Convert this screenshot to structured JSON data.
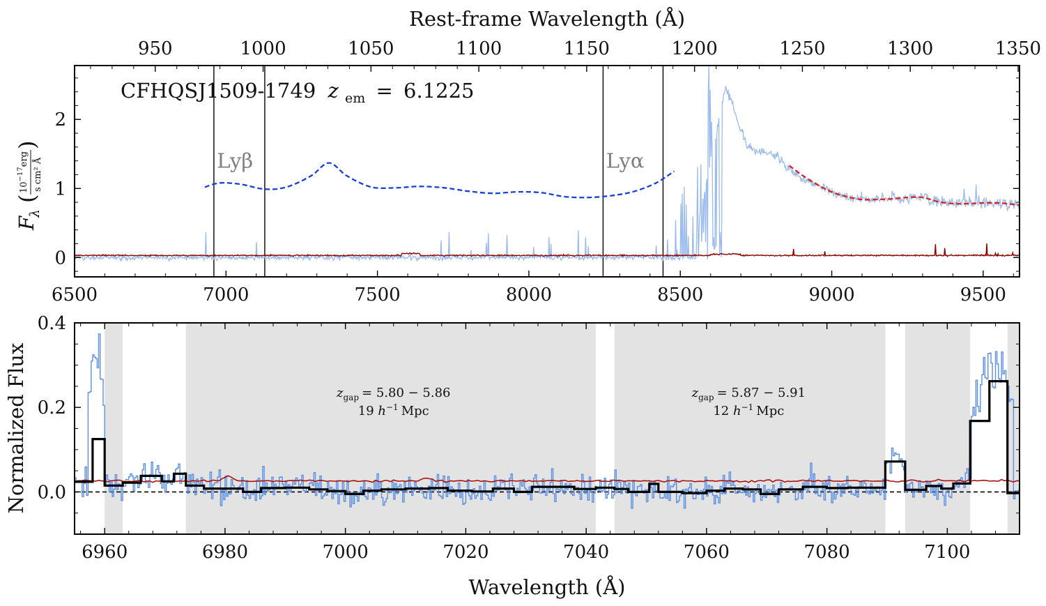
{
  "chart_data": [
    {
      "type": "line",
      "panel": "top",
      "object_label": "CFHQSJ1509-1749",
      "redshift_label": "6.1225",
      "redshift_symbol": "z",
      "redshift_subscript": "em",
      "ylabel_symbol": "F",
      "ylabel_subscript": "λ",
      "ylabel_unit_top": "10",
      "ylabel_unit_exp": "−17",
      "ylabel_unit_top_rest": "erg",
      "ylabel_unit_bottom": "s cm² Å",
      "xlabel_top": "Rest-frame Wavelength (Å)",
      "xlim": [
        6500,
        9620
      ],
      "ylim": [
        -0.28,
        2.78
      ],
      "x_ticks": [
        6500,
        7000,
        7500,
        8000,
        8500,
        9000,
        9500
      ],
      "top_ticks": [
        950,
        1000,
        1050,
        1100,
        1150,
        1200,
        1250,
        1300,
        1350
      ],
      "y_ticks": [
        0,
        1,
        2
      ],
      "vertical_lines": [
        6960,
        7128,
        8245,
        8443
      ],
      "line_labels": [
        {
          "text": "Lyβ",
          "x": 6970,
          "y": 1.3
        },
        {
          "text": "Lyα",
          "x": 8255,
          "y": 1.3
        }
      ],
      "series": [
        {
          "role": "flux",
          "color": "#9bbcec"
        },
        {
          "role": "error",
          "color": "#8b0000"
        },
        {
          "role": "continuum_model",
          "color": "#1a3fd6",
          "style": "dashed",
          "x": [
            6930,
            6980,
            7050,
            7128,
            7200,
            7280,
            7340,
            7400,
            7480,
            7560,
            7640,
            7720,
            7800,
            7880,
            7960,
            8040,
            8120,
            8200,
            8280,
            8350,
            8420,
            8480
          ],
          "values": [
            1.02,
            1.08,
            1.06,
            0.99,
            1.02,
            1.18,
            1.37,
            1.18,
            1.02,
            1.01,
            1.03,
            1.01,
            0.96,
            0.93,
            0.95,
            0.94,
            0.88,
            0.87,
            0.9,
            0.96,
            1.08,
            1.25
          ]
        },
        {
          "role": "continuum_fit",
          "color": "#dd1f1f",
          "style": "dashed",
          "x": [
            8860,
            8900,
            8950,
            9000,
            9050,
            9100,
            9150,
            9200,
            9250,
            9300,
            9350,
            9400,
            9450,
            9500,
            9550,
            9620
          ],
          "values": [
            1.33,
            1.2,
            1.06,
            0.95,
            0.88,
            0.84,
            0.84,
            0.85,
            0.87,
            0.87,
            0.81,
            0.78,
            0.78,
            0.79,
            0.79,
            0.76
          ]
        }
      ]
    },
    {
      "type": "line",
      "panel": "bottom",
      "xlabel": "Wavelength (Å)",
      "ylabel": "Normalized Flux",
      "xlim": [
        6955,
        7112
      ],
      "ylim": [
        -0.1,
        0.4
      ],
      "x_ticks": [
        6960,
        6980,
        7000,
        7020,
        7040,
        7060,
        7080,
        7100
      ],
      "y_ticks": [
        0.0,
        0.2,
        0.4
      ],
      "y_tick_labels": [
        "0.0",
        "0.2",
        "0.4"
      ],
      "zero_line": 0.0,
      "shaded_regions": [
        [
          6960.0,
          6963.0
        ],
        [
          6973.5,
          7041.6
        ],
        [
          7044.7,
          7089.7
        ],
        [
          7093.0,
          7103.8
        ],
        [
          7110.0,
          7112.0
        ]
      ],
      "gap_annotations": [
        {
          "label": "z",
          "sub": "gap",
          "range": "5.80 − 5.86",
          "size": "19",
          "unit": "h",
          "unit_exp": "−1",
          "unit_rest": "Mpc",
          "x": 7008
        },
        {
          "label": "z",
          "sub": "gap",
          "range": "5.87 − 5.91",
          "size": "12",
          "unit": "h",
          "unit_exp": "−1",
          "unit_rest": "Mpc",
          "x": 7067
        }
      ],
      "binned_flux": {
        "color": "#000000",
        "edges": [
          6955.0,
          6958.0,
          6960.0,
          6963.0,
          6966.0,
          6969.5,
          6971.5,
          6973.5,
          6976.5,
          6980.0,
          6983.0,
          6986.0,
          6990.0,
          6994.0,
          6997.0,
          7000.0,
          7003.0,
          7006.0,
          7010.0,
          7014.0,
          7017.0,
          7021.0,
          7024.5,
          7028.0,
          7031.0,
          7034.0,
          7038.0,
          7041.6,
          7044.7,
          7047.0,
          7050.5,
          7052.0,
          7056.0,
          7060.0,
          7063.0,
          7066.0,
          7069.0,
          7072.0,
          7076.0,
          7080.0,
          7083.5,
          7087.0,
          7089.7,
          7093.0,
          7096.5,
          7099.0,
          7101.0,
          7103.8,
          7107.0,
          7110.0,
          7112.0
        ],
        "values": [
          0.024,
          0.125,
          0.015,
          0.022,
          0.038,
          0.025,
          0.043,
          0.015,
          0.008,
          0.008,
          0.0,
          0.009,
          0.01,
          0.006,
          0.002,
          -0.005,
          0.003,
          0.006,
          0.008,
          0.009,
          0.003,
          0.001,
          0.008,
          0.0,
          0.012,
          0.012,
          0.007,
          0.01,
          0.007,
          0.0,
          0.019,
          0.0,
          -0.003,
          0.003,
          0.008,
          0.006,
          -0.005,
          0.006,
          0.012,
          0.009,
          0.01,
          0.01,
          0.072,
          0.005,
          0.014,
          0.008,
          0.02,
          0.168,
          0.262,
          -0.003
        ]
      },
      "series": [
        {
          "role": "flux",
          "color": "#5b8fe3"
        },
        {
          "role": "error",
          "color": "#aa1111",
          "level": 0.026
        }
      ]
    }
  ]
}
